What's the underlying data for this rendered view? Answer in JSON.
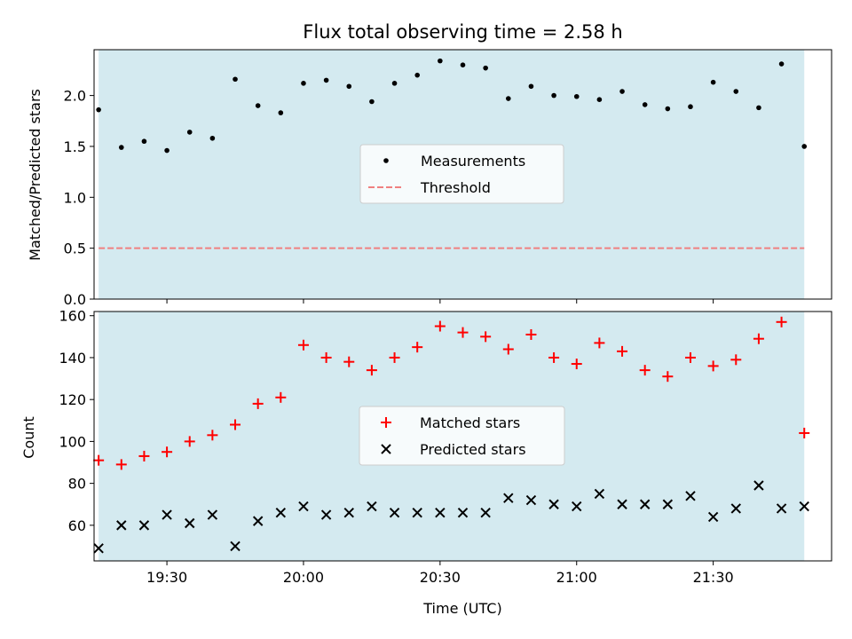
{
  "chart_data": [
    {
      "type": "scatter",
      "title": "Flux total observing time = 2.58 h",
      "ylabel": "Matched/Predicted stars",
      "xlim": [
        "19:14",
        "21:56"
      ],
      "ylim": [
        0,
        2.45
      ],
      "yticks": [
        "0.0",
        "0.5",
        "1.0",
        "1.5",
        "2.0"
      ],
      "shaded_span": [
        "19:15",
        "21:50"
      ],
      "shaded_color": "#d4eaf0",
      "legend_position": "center",
      "series": [
        {
          "name": "Measurements",
          "marker": "dot",
          "color": "#000000",
          "x": [
            "19:15",
            "19:20",
            "19:25",
            "19:30",
            "19:35",
            "19:40",
            "19:45",
            "19:50",
            "19:55",
            "20:00",
            "20:05",
            "20:10",
            "20:15",
            "20:20",
            "20:25",
            "20:30",
            "20:35",
            "20:40",
            "20:45",
            "20:50",
            "20:55",
            "21:00",
            "21:05",
            "21:10",
            "21:15",
            "21:20",
            "21:25",
            "21:30",
            "21:35",
            "21:40",
            "21:45",
            "21:50"
          ],
          "y": [
            1.86,
            1.49,
            1.55,
            1.46,
            1.64,
            1.58,
            2.16,
            1.9,
            1.83,
            2.12,
            2.15,
            2.09,
            1.94,
            2.12,
            2.2,
            2.34,
            2.3,
            2.27,
            1.97,
            2.09,
            2.0,
            1.99,
            1.96,
            2.04,
            1.91,
            1.87,
            1.89,
            2.13,
            2.04,
            1.88,
            2.31,
            1.5
          ]
        },
        {
          "name": "Threshold",
          "marker": "dashed-line",
          "color": "#f08080",
          "x": [
            "19:15",
            "21:50"
          ],
          "y": [
            0.5,
            0.5
          ]
        }
      ]
    },
    {
      "type": "scatter",
      "xlabel": "Time (UTC)",
      "ylabel": "Count",
      "xlim": [
        "19:14",
        "21:56"
      ],
      "ylim": [
        43,
        162
      ],
      "yticks": [
        "60",
        "80",
        "100",
        "120",
        "140",
        "160"
      ],
      "xticks": [
        "19:30",
        "20:00",
        "20:30",
        "21:00",
        "21:30"
      ],
      "shaded_span": [
        "19:15",
        "21:50"
      ],
      "shaded_color": "#d4eaf0",
      "legend_position": "center",
      "series": [
        {
          "name": "Matched stars",
          "marker": "plus",
          "color": "#ff0000",
          "x": [
            "19:15",
            "19:20",
            "19:25",
            "19:30",
            "19:35",
            "19:40",
            "19:45",
            "19:50",
            "19:55",
            "20:00",
            "20:05",
            "20:10",
            "20:15",
            "20:20",
            "20:25",
            "20:30",
            "20:35",
            "20:40",
            "20:45",
            "20:50",
            "20:55",
            "21:00",
            "21:05",
            "21:10",
            "21:15",
            "21:20",
            "21:25",
            "21:30",
            "21:35",
            "21:40",
            "21:45",
            "21:50"
          ],
          "y": [
            91,
            89,
            93,
            95,
            100,
            103,
            108,
            118,
            121,
            146,
            140,
            138,
            134,
            140,
            145,
            155,
            152,
            150,
            144,
            151,
            140,
            137,
            147,
            143,
            134,
            131,
            140,
            136,
            139,
            149,
            157,
            104
          ]
        },
        {
          "name": "Predicted stars",
          "marker": "x",
          "color": "#000000",
          "x": [
            "19:15",
            "19:20",
            "19:25",
            "19:30",
            "19:35",
            "19:40",
            "19:45",
            "19:50",
            "19:55",
            "20:00",
            "20:05",
            "20:10",
            "20:15",
            "20:20",
            "20:25",
            "20:30",
            "20:35",
            "20:40",
            "20:45",
            "20:50",
            "20:55",
            "21:00",
            "21:05",
            "21:10",
            "21:15",
            "21:20",
            "21:25",
            "21:30",
            "21:35",
            "21:40",
            "21:45",
            "21:50"
          ],
          "y": [
            49,
            60,
            60,
            65,
            61,
            65,
            50,
            62,
            66,
            69,
            65,
            66,
            69,
            66,
            66,
            66,
            66,
            66,
            73,
            72,
            70,
            69,
            75,
            70,
            70,
            70,
            74,
            64,
            68,
            79,
            68,
            69
          ]
        }
      ]
    }
  ]
}
